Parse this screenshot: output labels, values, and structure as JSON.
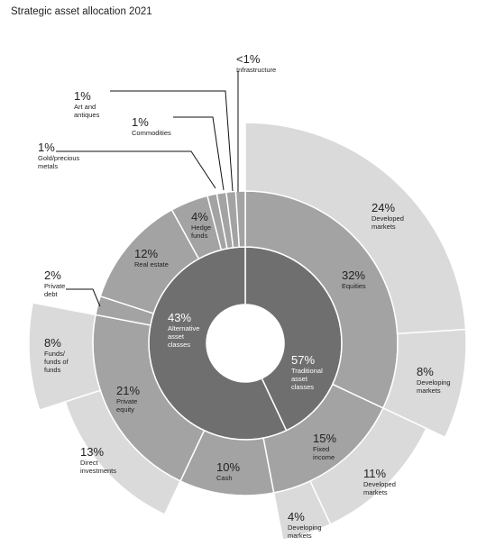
{
  "chart_data": {
    "type": "sunburst",
    "title": "Strategic asset allocation 2021",
    "colors": {
      "inner": "#6f6f6f",
      "middle": "#a3a3a3",
      "outer": "#dadada",
      "separator": "#ffffff",
      "leader": "#111111"
    },
    "rings": {
      "inner": [
        {
          "id": "alt",
          "value": "43%",
          "label": [
            "Alternative",
            "asset",
            "classes"
          ],
          "start": 0,
          "end": 43
        },
        {
          "id": "trad",
          "value": "57%",
          "label": [
            "Traditional",
            "asset",
            "classes"
          ],
          "start": 43,
          "end": 100
        }
      ],
      "middle": [
        {
          "id": "equities",
          "value": "32%",
          "label": [
            "Equities"
          ],
          "start": 0,
          "end": 32
        },
        {
          "id": "fixed",
          "value": "15%",
          "label": [
            "Fixed",
            "income"
          ],
          "start": 32,
          "end": 47
        },
        {
          "id": "cash",
          "value": "10%",
          "label": [
            "Cash"
          ],
          "start": 47,
          "end": 57
        },
        {
          "id": "pe",
          "value": "21%",
          "label": [
            "Private",
            "equity"
          ],
          "start": 57,
          "end": 78
        },
        {
          "id": "pd",
          "value": "2%",
          "label": [
            "Private",
            "debt"
          ],
          "start": 78,
          "end": 80
        },
        {
          "id": "re",
          "value": "12%",
          "label": [
            "Real estate"
          ],
          "start": 80,
          "end": 92
        },
        {
          "id": "hf",
          "value": "4%",
          "label": [
            "Hedge",
            "funds"
          ],
          "start": 92,
          "end": 96
        },
        {
          "id": "gold",
          "value": "1%",
          "label": [
            "Gold/precious",
            "metals"
          ],
          "start": 96,
          "end": 97
        },
        {
          "id": "comm",
          "value": "1%",
          "label": [
            "Commodities"
          ],
          "start": 97,
          "end": 98
        },
        {
          "id": "art",
          "value": "1%",
          "label": [
            "Art and",
            "antiques"
          ],
          "start": 98,
          "end": 99
        },
        {
          "id": "infra",
          "value": "<1%",
          "label": [
            "Infrastructure"
          ],
          "start": 99,
          "end": 100
        }
      ],
      "outer": [
        {
          "id": "eq-dev",
          "value": "24%",
          "label": [
            "Developed",
            "markets"
          ],
          "start": 0,
          "end": 24
        },
        {
          "id": "eq-em",
          "value": "8%",
          "label": [
            "Developing",
            "markets"
          ],
          "start": 24,
          "end": 32
        },
        {
          "id": "fi-dev",
          "value": "11%",
          "label": [
            "Developed",
            "markets"
          ],
          "start": 32,
          "end": 43
        },
        {
          "id": "fi-em",
          "value": "4%",
          "label": [
            "Developing",
            "markets"
          ],
          "start": 43,
          "end": 47
        },
        {
          "id": "pe-direct",
          "value": "13%",
          "label": [
            "Direct",
            "investments"
          ],
          "start": 57,
          "end": 70
        },
        {
          "id": "pe-funds",
          "value": "8%",
          "label": [
            "Funds/",
            "funds of",
            "funds"
          ],
          "start": 70,
          "end": 78
        }
      ]
    }
  }
}
